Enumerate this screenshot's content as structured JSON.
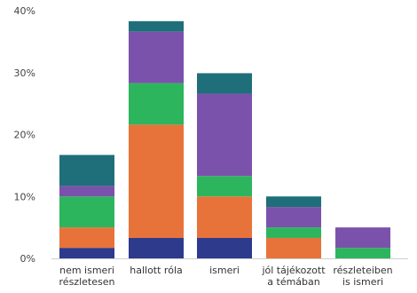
{
  "chart_data": {
    "type": "bar",
    "stacked": true,
    "title": "",
    "xlabel": "",
    "ylabel": "",
    "ylim": [
      0,
      40
    ],
    "yticks": [
      0,
      10,
      20,
      30,
      40
    ],
    "ytick_labels": [
      "0%",
      "10%",
      "20%",
      "30%",
      "40%"
    ],
    "grid": false,
    "legend": "none",
    "categories": [
      [
        "nem ismeri",
        "részletesen"
      ],
      [
        "hallott róla"
      ],
      [
        "ismeri"
      ],
      [
        "jól tájékozott",
        "a témában"
      ],
      [
        "részleteiben",
        "is ismeri"
      ]
    ],
    "series": [
      {
        "color": "#2e3a8c",
        "values": [
          1.7,
          3.3,
          3.3,
          0,
          0
        ]
      },
      {
        "color": "#e8733a",
        "values": [
          3.3,
          18.3,
          6.7,
          3.3,
          0
        ]
      },
      {
        "color": "#2db55d",
        "values": [
          5.0,
          6.7,
          3.3,
          1.7,
          1.7
        ]
      },
      {
        "color": "#7b52ab",
        "values": [
          1.7,
          8.3,
          13.3,
          3.3,
          3.3
        ]
      },
      {
        "color": "#1f6f7a",
        "values": [
          5.0,
          1.7,
          3.3,
          1.7,
          0
        ]
      }
    ]
  }
}
